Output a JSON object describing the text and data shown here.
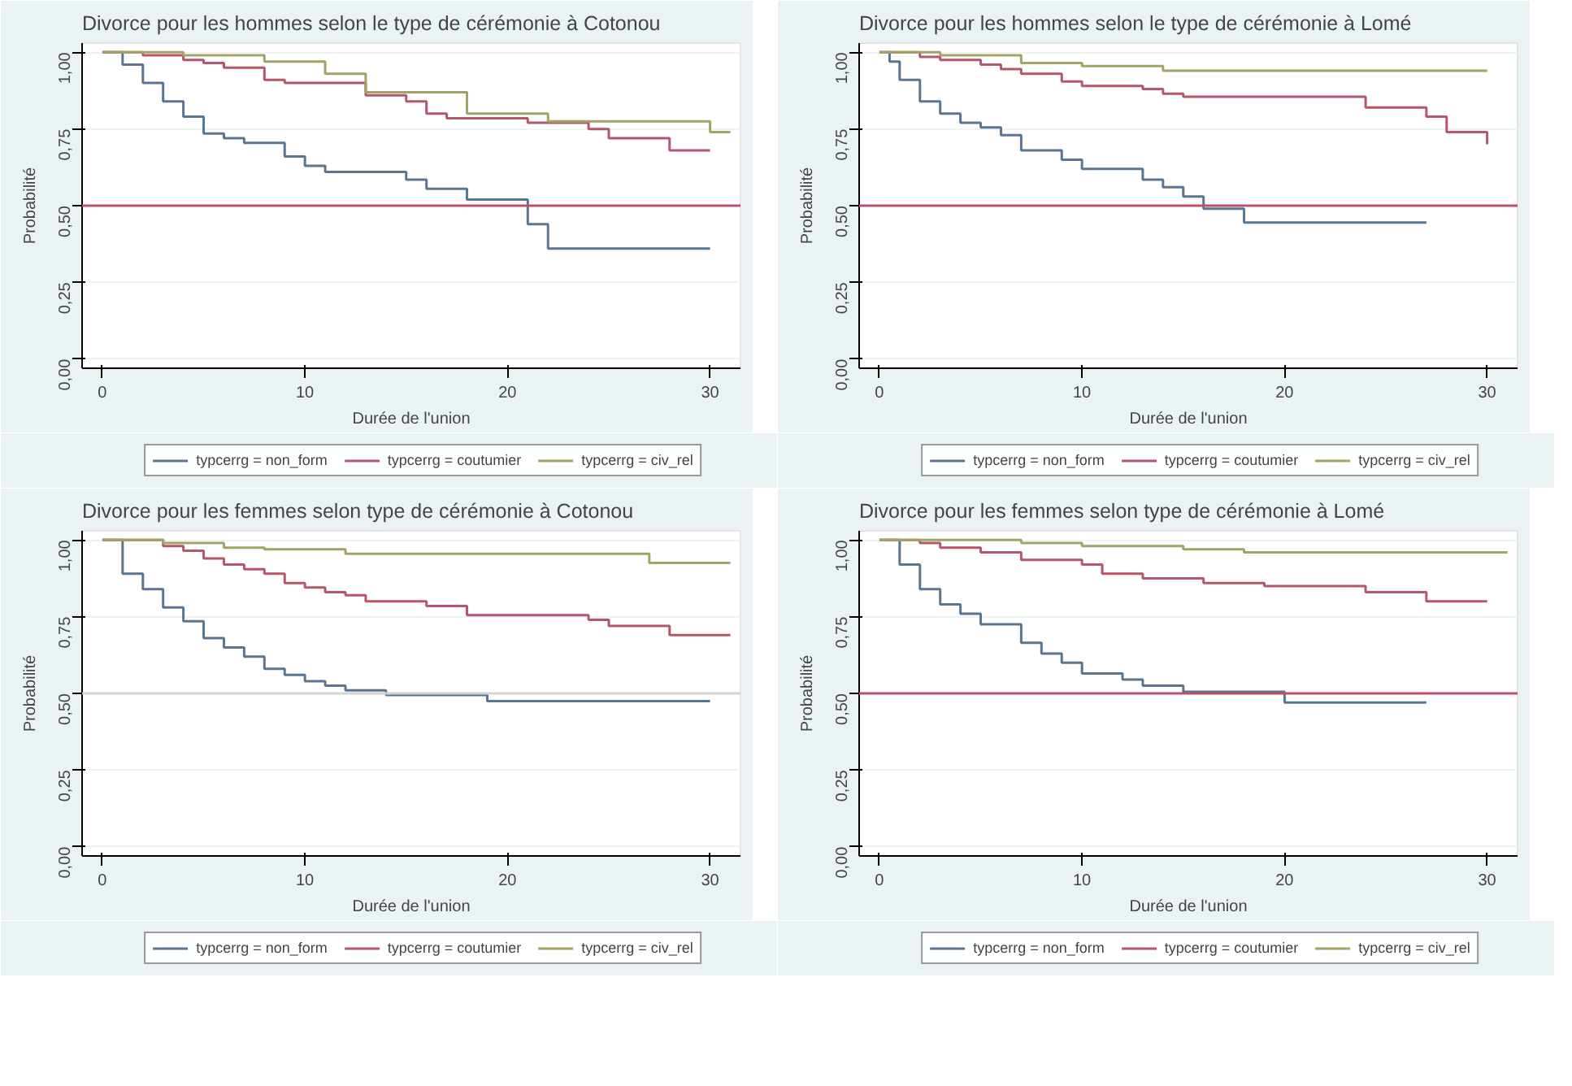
{
  "chart_data": [
    {
      "type": "step",
      "title": "Divorce pour les hommes selon le type de cérémonie à Cotonou",
      "xlabel": "Durée de l'union",
      "ylabel": "Probabilité",
      "xlim": [
        -1,
        31.5
      ],
      "ylim": [
        -0.03,
        1.03
      ],
      "xticks": [
        0,
        10,
        20,
        30
      ],
      "yticks": [
        {
          "value": 0,
          "label": "0,00"
        },
        {
          "value": 0.25,
          "label": "0,25"
        },
        {
          "value": 0.5,
          "label": "0,50"
        },
        {
          "value": 0.75,
          "label": "0,75"
        },
        {
          "value": 1,
          "label": "1,00"
        }
      ],
      "grid": "y",
      "legend": "bottom",
      "ref_lines": [
        {
          "axis": "y",
          "value": 0.5,
          "color": "#c0506a"
        }
      ],
      "series": [
        {
          "name": "typcerrg = non_form",
          "color": "#5a7590",
          "x": [
            0,
            1,
            2,
            3,
            4,
            5,
            6,
            7,
            9,
            10,
            11,
            15,
            16,
            18,
            21,
            22,
            30
          ],
          "values": [
            1.0,
            0.96,
            0.9,
            0.84,
            0.79,
            0.735,
            0.72,
            0.705,
            0.66,
            0.63,
            0.61,
            0.585,
            0.555,
            0.52,
            0.44,
            0.36,
            0.36
          ]
        },
        {
          "name": "typcerrg = coutumier",
          "color": "#b5566a",
          "x": [
            0,
            2,
            4,
            5,
            6,
            8,
            9,
            13,
            15,
            16,
            17,
            21,
            24,
            25,
            28,
            30
          ],
          "values": [
            1.0,
            0.99,
            0.975,
            0.965,
            0.95,
            0.91,
            0.9,
            0.86,
            0.84,
            0.8,
            0.785,
            0.77,
            0.75,
            0.72,
            0.68,
            0.68
          ]
        },
        {
          "name": "typcerrg = civ_rel",
          "color": "#a3a365",
          "x": [
            0,
            4,
            8,
            11,
            13,
            18,
            22,
            30,
            31
          ],
          "values": [
            1.0,
            0.99,
            0.97,
            0.93,
            0.87,
            0.8,
            0.775,
            0.74,
            0.74
          ]
        }
      ]
    },
    {
      "type": "step",
      "title": "Divorce pour les hommes selon le type de cérémonie à Lomé",
      "xlabel": "Durée de l'union",
      "ylabel": "Probabilité",
      "xlim": [
        -1,
        31.5
      ],
      "ylim": [
        -0.03,
        1.03
      ],
      "xticks": [
        0,
        10,
        20,
        30
      ],
      "yticks": [
        {
          "value": 0,
          "label": "0,00"
        },
        {
          "value": 0.25,
          "label": "0,25"
        },
        {
          "value": 0.5,
          "label": "0,50"
        },
        {
          "value": 0.75,
          "label": "0,75"
        },
        {
          "value": 1,
          "label": "1,00"
        }
      ],
      "grid": "y",
      "legend": "bottom",
      "ref_lines": [
        {
          "axis": "y",
          "value": 0.5,
          "color": "#c0506a"
        }
      ],
      "series": [
        {
          "name": "typcerrg = non_form",
          "color": "#5a7590",
          "x": [
            0,
            0.5,
            1,
            2,
            3,
            4,
            5,
            6,
            7,
            9,
            10,
            13,
            14,
            15,
            16,
            18,
            27
          ],
          "values": [
            1.0,
            0.97,
            0.91,
            0.84,
            0.8,
            0.77,
            0.755,
            0.73,
            0.68,
            0.65,
            0.62,
            0.585,
            0.56,
            0.53,
            0.49,
            0.445,
            0.445
          ]
        },
        {
          "name": "typcerrg = coutumier",
          "color": "#b5566a",
          "x": [
            0,
            2,
            3,
            5,
            6,
            7,
            9,
            10,
            13,
            14,
            15,
            24,
            27,
            28,
            30
          ],
          "values": [
            1.0,
            0.985,
            0.975,
            0.96,
            0.945,
            0.93,
            0.905,
            0.89,
            0.88,
            0.865,
            0.855,
            0.82,
            0.79,
            0.74,
            0.7
          ]
        },
        {
          "name": "typcerrg = civ_rel",
          "color": "#a3a365",
          "x": [
            0,
            3,
            7,
            10,
            14,
            30
          ],
          "values": [
            1.0,
            0.99,
            0.965,
            0.955,
            0.94,
            0.94
          ]
        }
      ]
    },
    {
      "type": "step",
      "title": "Divorce pour les femmes selon  type de cérémonie à Cotonou",
      "xlabel": "Durée de l'union",
      "ylabel": "Probabilité",
      "xlim": [
        -1,
        31.5
      ],
      "ylim": [
        -0.03,
        1.03
      ],
      "xticks": [
        0,
        10,
        20,
        30
      ],
      "yticks": [
        {
          "value": 0,
          "label": "0,00"
        },
        {
          "value": 0.25,
          "label": "0,25"
        },
        {
          "value": 0.5,
          "label": "0,50"
        },
        {
          "value": 0.75,
          "label": "0,75"
        },
        {
          "value": 1,
          "label": "1,00"
        }
      ],
      "grid": "y",
      "legend": "bottom",
      "ref_lines": [
        {
          "axis": "y",
          "value": 0.5,
          "color": "#d4d4d4"
        }
      ],
      "series": [
        {
          "name": "typcerrg = non_form",
          "color": "#5a7590",
          "x": [
            0,
            1,
            2,
            3,
            4,
            5,
            6,
            7,
            8,
            9,
            10,
            11,
            12,
            14,
            19,
            30
          ],
          "values": [
            1.0,
            0.89,
            0.84,
            0.78,
            0.735,
            0.68,
            0.65,
            0.62,
            0.58,
            0.56,
            0.54,
            0.525,
            0.51,
            0.495,
            0.475,
            0.475
          ]
        },
        {
          "name": "typcerrg = coutumier",
          "color": "#b5566a",
          "x": [
            0,
            3,
            4,
            5,
            6,
            7,
            8,
            9,
            10,
            11,
            12,
            13,
            16,
            18,
            24,
            25,
            28,
            31
          ],
          "values": [
            1.0,
            0.98,
            0.965,
            0.94,
            0.92,
            0.905,
            0.89,
            0.86,
            0.845,
            0.83,
            0.82,
            0.8,
            0.785,
            0.755,
            0.74,
            0.72,
            0.69,
            0.69
          ]
        },
        {
          "name": "typcerrg = civ_rel",
          "color": "#a3a365",
          "x": [
            0,
            3,
            6,
            8,
            12,
            27,
            31
          ],
          "values": [
            1.0,
            0.99,
            0.975,
            0.97,
            0.955,
            0.925,
            0.925
          ]
        }
      ]
    },
    {
      "type": "step",
      "title": "Divorce pour les femmes selon  type de cérémonie à Lomé",
      "xlabel": "Durée de l'union",
      "ylabel": "Probabilité",
      "xlim": [
        -1,
        31.5
      ],
      "ylim": [
        -0.03,
        1.03
      ],
      "xticks": [
        0,
        10,
        20,
        30
      ],
      "yticks": [
        {
          "value": 0,
          "label": "0,00"
        },
        {
          "value": 0.25,
          "label": "0,25"
        },
        {
          "value": 0.5,
          "label": "0,50"
        },
        {
          "value": 0.75,
          "label": "0,75"
        },
        {
          "value": 1,
          "label": "1,00"
        }
      ],
      "grid": "y",
      "legend": "bottom",
      "ref_lines": [
        {
          "axis": "y",
          "value": 0.5,
          "color": "#c0506a"
        }
      ],
      "series": [
        {
          "name": "typcerrg = non_form",
          "color": "#5a7590",
          "x": [
            0,
            1,
            2,
            3,
            4,
            5,
            7,
            8,
            9,
            10,
            12,
            13,
            15,
            20,
            27
          ],
          "values": [
            1.0,
            0.92,
            0.84,
            0.79,
            0.76,
            0.725,
            0.665,
            0.63,
            0.6,
            0.565,
            0.545,
            0.525,
            0.505,
            0.47,
            0.47
          ]
        },
        {
          "name": "typcerrg = coutumier",
          "color": "#b5566a",
          "x": [
            0,
            2,
            3,
            5,
            7,
            10,
            11,
            13,
            16,
            19,
            24,
            27,
            30
          ],
          "values": [
            1.0,
            0.99,
            0.975,
            0.96,
            0.935,
            0.92,
            0.89,
            0.875,
            0.86,
            0.85,
            0.83,
            0.8,
            0.8
          ]
        },
        {
          "name": "typcerrg = civ_rel",
          "color": "#a3a365",
          "x": [
            0,
            7,
            10,
            15,
            18,
            31
          ],
          "values": [
            1.0,
            0.99,
            0.98,
            0.97,
            0.96,
            0.96
          ]
        }
      ]
    }
  ]
}
